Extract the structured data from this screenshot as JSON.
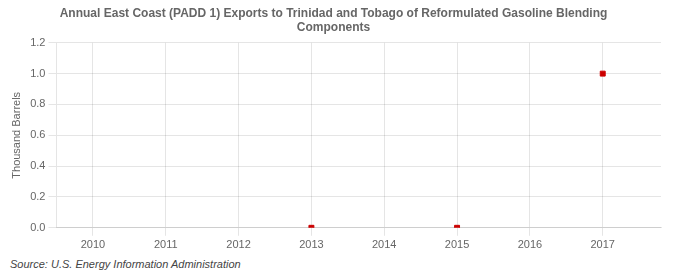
{
  "chart_data": {
    "type": "scatter",
    "title": "Annual East Coast (PADD 1) Exports to Trinidad and Tobago of Reformulated Gasoline Blending\nComponents",
    "ylabel": "Thousand Barrels",
    "source": "Source: U.S. Energy Information Administration",
    "x": [
      2013,
      2015,
      2017
    ],
    "values": [
      0.0,
      0.0,
      1.0
    ],
    "color": "#cc0000",
    "marker": "square",
    "xlim": [
      2009.5,
      2017.8
    ],
    "xticks": [
      2010,
      2011,
      2012,
      2013,
      2014,
      2015,
      2016,
      2017
    ],
    "ylim": [
      0.0,
      1.2
    ],
    "yticks": [
      {
        "value": 0.0,
        "label": "0.0"
      },
      0.2,
      0.4,
      0.6,
      0.8,
      {
        "value": 1.0,
        "label": "1.0"
      },
      1.2
    ],
    "grid": true
  }
}
